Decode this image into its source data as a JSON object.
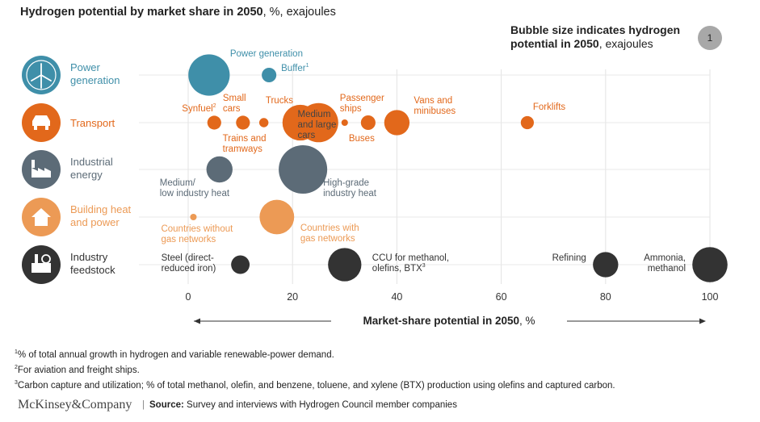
{
  "title": {
    "main": "Hydrogen potential by market share in 2050",
    "units": ", %, exajoules"
  },
  "bubble_note": {
    "main": "Bubble size indicates hydrogen potential in 2050",
    "units": ", exajoules",
    "reference_value": "1"
  },
  "chart_data": {
    "type": "scatter",
    "title": "Hydrogen potential by market share in 2050, %, exajoules",
    "xlabel": "Market-share potential in 2050, %",
    "xlim": [
      0,
      100
    ],
    "xticks": [
      0,
      20,
      40,
      60,
      80,
      100
    ],
    "size_note": "Bubble size indicates hydrogen potential in 2050, exajoules",
    "categories": [
      {
        "label": "Power generation",
        "icon": "wind-turbine-icon",
        "color": "#3f8fa9"
      },
      {
        "label": "Transport",
        "icon": "car-icon",
        "color": "#e2681b"
      },
      {
        "label": "Industrial energy",
        "icon": "factory-icon",
        "color": "#5c6b77"
      },
      {
        "label": "Building heat and power",
        "icon": "house-icon",
        "color": "#ec9a55"
      },
      {
        "label": "Industry feedstock",
        "icon": "chemical-plant-icon",
        "color": "#333333"
      }
    ],
    "points": [
      {
        "category": 0,
        "label": "Power generation",
        "x": 4,
        "size": 4.0
      },
      {
        "category": 0,
        "label": "Buffer",
        "sup": "1",
        "x": 15.5,
        "size": 0.5
      },
      {
        "category": 1,
        "label": "Synfuel",
        "sup": "2",
        "x": 5,
        "size": 0.45
      },
      {
        "category": 1,
        "label": "Small cars",
        "x": 10.5,
        "size": 0.45
      },
      {
        "category": 1,
        "label": "Trains and tramways",
        "x": 14.5,
        "size": 0.2
      },
      {
        "category": 1,
        "label": "Trucks",
        "x": 21.5,
        "size": 3.0
      },
      {
        "category": 1,
        "label": "Medium and large cars",
        "x": 25,
        "size": 3.6
      },
      {
        "category": 1,
        "label": "Passenger ships",
        "x": 30,
        "size": 0.1
      },
      {
        "category": 1,
        "label": "Buses",
        "x": 34.5,
        "size": 0.5
      },
      {
        "category": 1,
        "label": "Vans and minibuses",
        "x": 40,
        "size": 1.5
      },
      {
        "category": 1,
        "label": "Forklifts",
        "x": 65,
        "size": 0.4
      },
      {
        "category": 2,
        "label": "Medium/ low industry heat",
        "x": 6,
        "size": 1.6
      },
      {
        "category": 2,
        "label": "High-grade industry heat",
        "x": 22,
        "size": 5.5
      },
      {
        "category": 3,
        "label": "Countries without gas networks",
        "x": 1,
        "size": 0.1
      },
      {
        "category": 3,
        "label": "Countries with gas networks",
        "x": 17,
        "size": 2.8
      },
      {
        "category": 4,
        "label": "Steel (direct-reduced iron)",
        "x": 10,
        "size": 0.8
      },
      {
        "category": 4,
        "label": "CCU for methanol, olefins, BTX",
        "sup": "3",
        "x": 30,
        "size": 2.6
      },
      {
        "category": 4,
        "label": "Refining",
        "x": 80,
        "size": 1.5
      },
      {
        "category": 4,
        "label": "Ammonia, methanol",
        "x": 100,
        "size": 2.9
      }
    ]
  },
  "footnotes": [
    {
      "sup": "1",
      "text": "% of total annual growth in hydrogen and variable renewable-power demand."
    },
    {
      "sup": "2",
      "text": "For aviation and freight ships."
    },
    {
      "sup": "3",
      "text": "Carbon capture and utilization; % of total methanol, olefin, and benzene, toluene, and xylene (BTX) production using olefins and captured carbon."
    }
  ],
  "brand": "McKinsey&Company",
  "source": {
    "label": "Source:",
    "text": " Survey and interviews with Hydrogen Council member companies"
  }
}
